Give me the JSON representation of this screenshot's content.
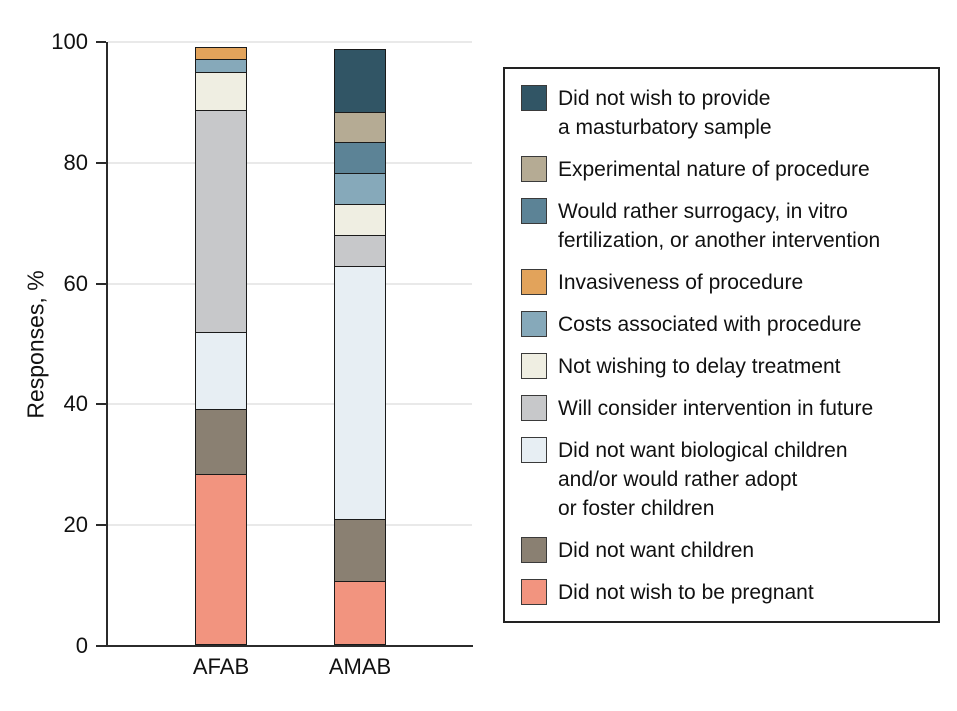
{
  "chart_data": {
    "type": "bar",
    "variant": "stacked",
    "title": "",
    "ylabel": "Responses, %",
    "xlabel": "",
    "ylim": [
      0,
      100
    ],
    "yticks": [
      0,
      20,
      40,
      60,
      80,
      100
    ],
    "grid": "horizontal",
    "legend_position": "right",
    "categories": [
      "AFAB",
      "AMAB"
    ],
    "series": [
      {
        "name": "Did not wish to provide\na masturbatory sample",
        "color": "#315565",
        "values": [
          0,
          12.5
        ]
      },
      {
        "name": "Experimental nature of procedure",
        "color": "#b5ab94",
        "values": [
          0,
          6.25
        ]
      },
      {
        "name": "Would rather surrogacy, in vitro\nfertilization, or another intervention",
        "color": "#5c8396",
        "values": [
          0,
          6.25
        ]
      },
      {
        "name": "Invasiveness of procedure",
        "color": "#e2a35b",
        "values": [
          2.2,
          0
        ]
      },
      {
        "name": "Costs associated with procedure",
        "color": "#86a9ba",
        "values": [
          2.2,
          6.25
        ]
      },
      {
        "name": "Not wishing to delay treatment",
        "color": "#efeee2",
        "values": [
          6.5,
          6.25
        ]
      },
      {
        "name": "Will consider intervention in future",
        "color": "#c7c8ca",
        "values": [
          37.0,
          6.25
        ]
      },
      {
        "name": "Did not want biological children\nand/or would rather adopt\nor foster children",
        "color": "#e7eef3",
        "values": [
          13.0,
          50.0
        ]
      },
      {
        "name": "Did not want children",
        "color": "#8a8072",
        "values": [
          10.9,
          12.5
        ]
      },
      {
        "name": "Did not wish to be pregnant",
        "color": "#f2947f",
        "values": [
          28.3,
          12.5
        ]
      }
    ],
    "style": {
      "axis_color": "#2b2b2b",
      "gridline_color": "#e9e9e9",
      "segment_border": "#1a1a1a",
      "background": "#ffffff"
    }
  }
}
